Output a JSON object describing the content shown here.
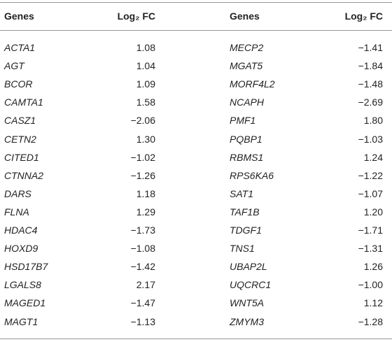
{
  "table": {
    "header": [
      "Genes",
      "Log₂ FC",
      "Genes",
      "Log₂ FC"
    ],
    "rows": [
      [
        "ACTA1",
        "1.08",
        "MECP2",
        "−1.41"
      ],
      [
        "AGT",
        "1.04",
        "MGAT5",
        "−1.84"
      ],
      [
        "BCOR",
        "1.09",
        "MORF4L2",
        "−1.48"
      ],
      [
        "CAMTA1",
        "1.58",
        "NCAPH",
        "−2.69"
      ],
      [
        "CASZ1",
        "−2.06",
        "PMF1",
        "1.80"
      ],
      [
        "CETN2",
        "1.30",
        "PQBP1",
        "−1.03"
      ],
      [
        "CITED1",
        "−1.02",
        "RBMS1",
        "1.24"
      ],
      [
        "CTNNA2",
        "−1.26",
        "RPS6KA6",
        "−1.22"
      ],
      [
        "DARS",
        "1.18",
        "SAT1",
        "−1.07"
      ],
      [
        "FLNA",
        "1.29",
        "TAF1B",
        "1.20"
      ],
      [
        "HDAC4",
        "−1.73",
        "TDGF1",
        "−1.71"
      ],
      [
        "HOXD9",
        "−1.08",
        "TNS1",
        "−1.31"
      ],
      [
        "HSD17B7",
        "−1.42",
        "UBAP2L",
        "1.26"
      ],
      [
        "LGALS8",
        "2.17",
        "UQCRC1",
        "−1.00"
      ],
      [
        "MAGED1",
        "−1.47",
        "WNT5A",
        "1.12"
      ],
      [
        "MAGT1",
        "−1.13",
        "ZMYM3",
        "−1.28"
      ]
    ]
  }
}
